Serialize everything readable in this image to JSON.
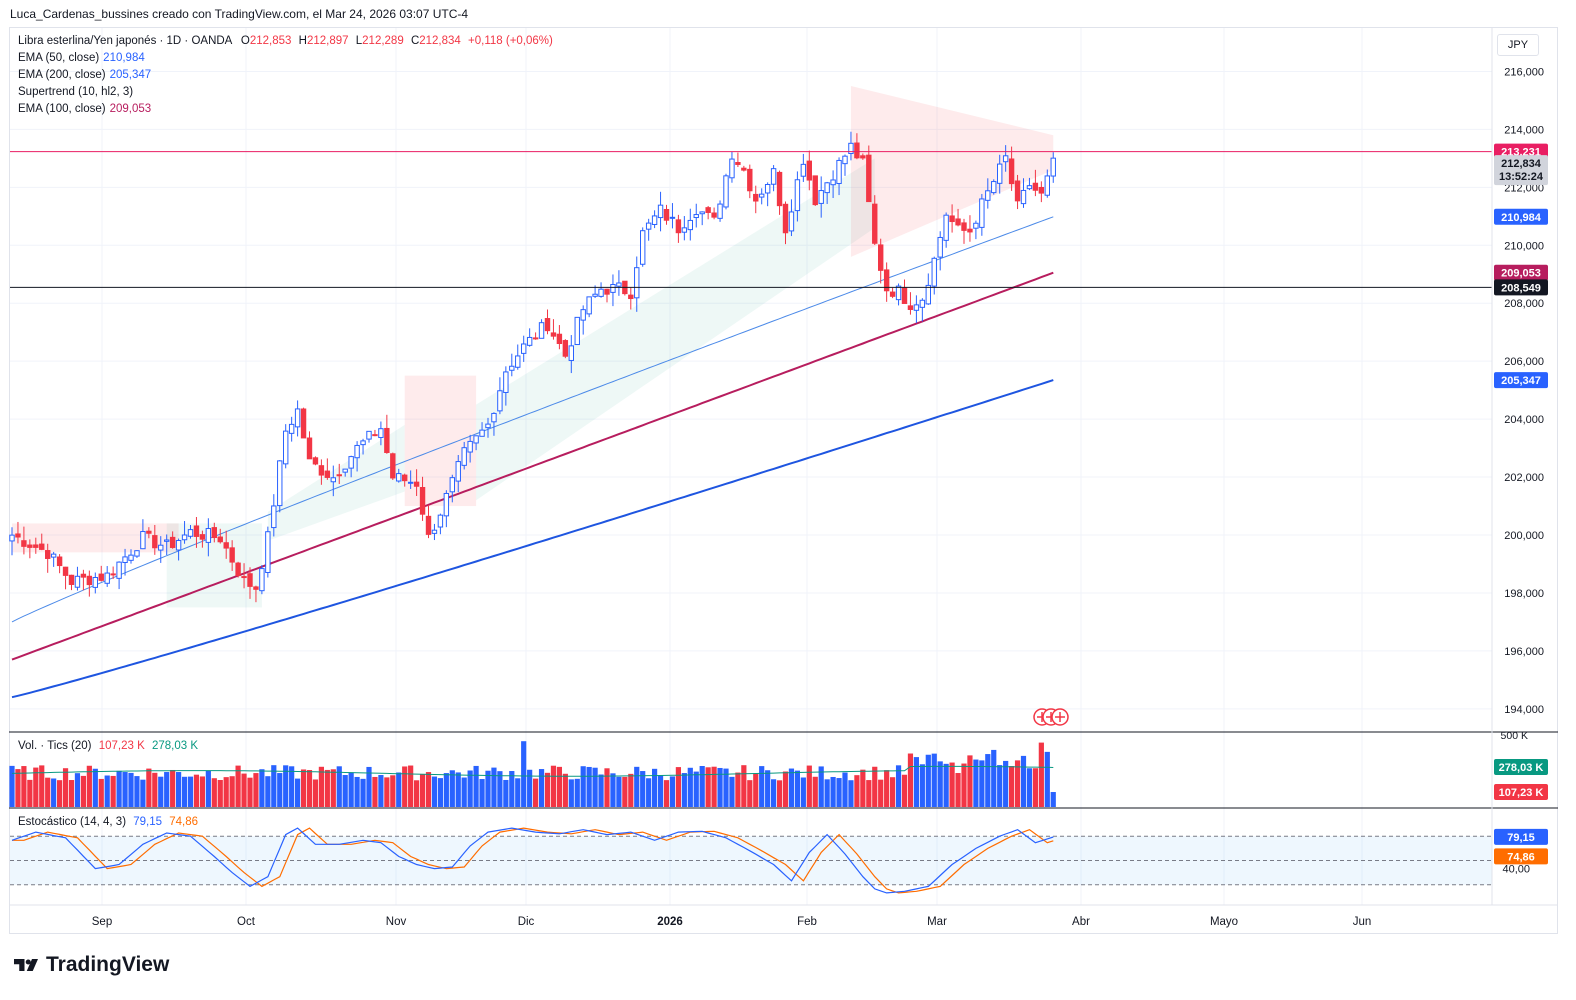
{
  "header": {
    "title_line": "Luca_Cardenas_bussines creado con TradingView.com, el Mar 24, 2026 03:07 UTC-4"
  },
  "currency": "JPY",
  "legend": {
    "symbol": "Libra esterlina/Yen japonés · 1D · OANDA",
    "o_label": "O",
    "o_value": "212,853",
    "h_label": "H",
    "h_value": "212,897",
    "l_label": "L",
    "l_value": "212,289",
    "c_label": "C",
    "c_value": "212,834",
    "change": "+0,118 (+0,06%)",
    "ema50_label": "EMA (50, close)",
    "ema50_value": "210,984",
    "ema200_label": "EMA (200, close)",
    "ema200_value": "205,347",
    "supertrend_label": "Supertrend (10, hl2, 3)",
    "ema100_label": "EMA (100, close)",
    "ema100_value": "209,053",
    "vol_label": "Vol. · Tics (20)",
    "vol_value1": "107,23 K",
    "vol_value2": "278,03 K",
    "stoch_label": "Estocástico (14, 4, 3)",
    "stoch_k": "79,15",
    "stoch_d": "74,86"
  },
  "price_labels": {
    "resistance": "213,231",
    "last": "212,834",
    "countdown": "13:52:24",
    "ema50": "210,984",
    "ema100": "209,053",
    "support": "208,549",
    "ema200": "205,347",
    "vol_ma": "278,03 K",
    "vol_last": "107,23 K",
    "stoch_k": "79,15",
    "stoch_d": "74,86"
  },
  "brand": "TradingView",
  "colors": {
    "up": "#2962ff",
    "down": "#f23645",
    "ema50": "#4c8ae8",
    "ema100": "#b71d5e",
    "ema200": "#1e55e0",
    "resistance": "#e91e63",
    "support": "#131722",
    "stoch_k": "#2962ff",
    "stoch_d": "#ff6d00"
  },
  "chart_data": {
    "type": "candlestick",
    "title": "Libra esterlina/Yen japonés · 1D · OANDA",
    "x_months": [
      "Sep",
      "Oct",
      "Nov",
      "Dic",
      "2026",
      "Feb",
      "Mar",
      "Abr",
      "Mayo",
      "Jun"
    ],
    "y_ticks": [
      "216,000",
      "214,000",
      "212,000",
      "210,000",
      "208,000",
      "206,000",
      "204,000",
      "202,000",
      "200,000",
      "198,000",
      "196,000",
      "194,000"
    ],
    "ylim": [
      193.2,
      217.5
    ],
    "horizontal_lines": [
      {
        "name": "resistance",
        "value": 213.231
      },
      {
        "name": "support",
        "value": 208.549
      }
    ],
    "close_keypoints": [
      [
        0,
        200.0
      ],
      [
        6,
        199.4
      ],
      [
        10,
        198.4
      ],
      [
        16,
        198.6
      ],
      [
        22,
        199.9
      ],
      [
        26,
        199.6
      ],
      [
        30,
        200.1
      ],
      [
        35,
        199.9
      ],
      [
        39,
        198.4
      ],
      [
        41,
        198.2
      ],
      [
        43,
        199.9
      ],
      [
        46,
        203.6
      ],
      [
        48,
        204.3
      ],
      [
        50,
        202.5
      ],
      [
        54,
        202.0
      ],
      [
        58,
        203.0
      ],
      [
        62,
        203.7
      ],
      [
        64,
        202.0
      ],
      [
        68,
        201.8
      ],
      [
        70,
        199.9
      ],
      [
        72,
        200.8
      ],
      [
        76,
        202.8
      ],
      [
        80,
        203.8
      ],
      [
        83,
        205.7
      ],
      [
        86,
        206.5
      ],
      [
        90,
        207.3
      ],
      [
        93,
        206.2
      ],
      [
        96,
        207.8
      ],
      [
        99,
        208.5
      ],
      [
        102,
        208.5
      ],
      [
        104,
        208.4
      ],
      [
        106,
        210.4
      ],
      [
        109,
        211.2
      ],
      [
        112,
        210.6
      ],
      [
        115,
        211.3
      ],
      [
        118,
        210.8
      ],
      [
        121,
        213.2
      ],
      [
        123,
        212.6
      ],
      [
        125,
        211.6
      ],
      [
        128,
        212.5
      ],
      [
        130,
        210.6
      ],
      [
        133,
        213.0
      ],
      [
        135,
        211.6
      ],
      [
        138,
        212.5
      ],
      [
        141,
        213.4
      ],
      [
        143,
        212.8
      ],
      [
        145,
        210.0
      ],
      [
        147,
        208.5
      ],
      [
        149,
        208.4
      ],
      [
        151,
        208.0
      ],
      [
        153,
        208.2
      ],
      [
        155,
        209.5
      ],
      [
        157,
        211.1
      ],
      [
        159,
        210.5
      ],
      [
        161,
        210.5
      ],
      [
        163,
        211.4
      ],
      [
        165,
        212.2
      ],
      [
        167,
        213.0
      ],
      [
        169,
        211.3
      ],
      [
        171,
        212.1
      ],
      [
        173,
        211.7
      ],
      [
        175,
        212.8
      ]
    ],
    "ema50_range": [
      197.0,
      210.984
    ],
    "ema100_range": [
      195.7,
      209.053
    ],
    "ema200_range": [
      194.4,
      205.347
    ],
    "volume": {
      "ma_value": "278,03 K",
      "last_value": "107,23 K",
      "axis_top": "500 K"
    },
    "stochastic": {
      "k_last": 79.15,
      "d_last": 74.86,
      "levels": [
        80,
        50,
        20
      ],
      "tick": "40,00",
      "k_keypoints": [
        [
          0,
          75
        ],
        [
          4,
          85
        ],
        [
          9,
          78
        ],
        [
          14,
          40
        ],
        [
          18,
          45
        ],
        [
          22,
          70
        ],
        [
          26,
          84
        ],
        [
          30,
          80
        ],
        [
          34,
          55
        ],
        [
          37,
          35
        ],
        [
          40,
          18
        ],
        [
          43,
          30
        ],
        [
          46,
          82
        ],
        [
          48,
          90
        ],
        [
          51,
          70
        ],
        [
          55,
          70
        ],
        [
          59,
          75
        ],
        [
          62,
          72
        ],
        [
          65,
          55
        ],
        [
          68,
          45
        ],
        [
          71,
          40
        ],
        [
          74,
          42
        ],
        [
          77,
          68
        ],
        [
          80,
          85
        ],
        [
          84,
          90
        ],
        [
          88,
          85
        ],
        [
          92,
          83
        ],
        [
          96,
          88
        ],
        [
          100,
          82
        ],
        [
          104,
          85
        ],
        [
          108,
          75
        ],
        [
          112,
          85
        ],
        [
          116,
          86
        ],
        [
          120,
          78
        ],
        [
          124,
          62
        ],
        [
          128,
          45
        ],
        [
          131,
          25
        ],
        [
          134,
          60
        ],
        [
          137,
          82
        ],
        [
          140,
          58
        ],
        [
          143,
          30
        ],
        [
          145,
          15
        ],
        [
          147,
          10
        ],
        [
          150,
          12
        ],
        [
          154,
          18
        ],
        [
          158,
          45
        ],
        [
          162,
          65
        ],
        [
          166,
          80
        ],
        [
          169,
          88
        ],
        [
          172,
          72
        ],
        [
          175,
          79
        ]
      ]
    }
  }
}
